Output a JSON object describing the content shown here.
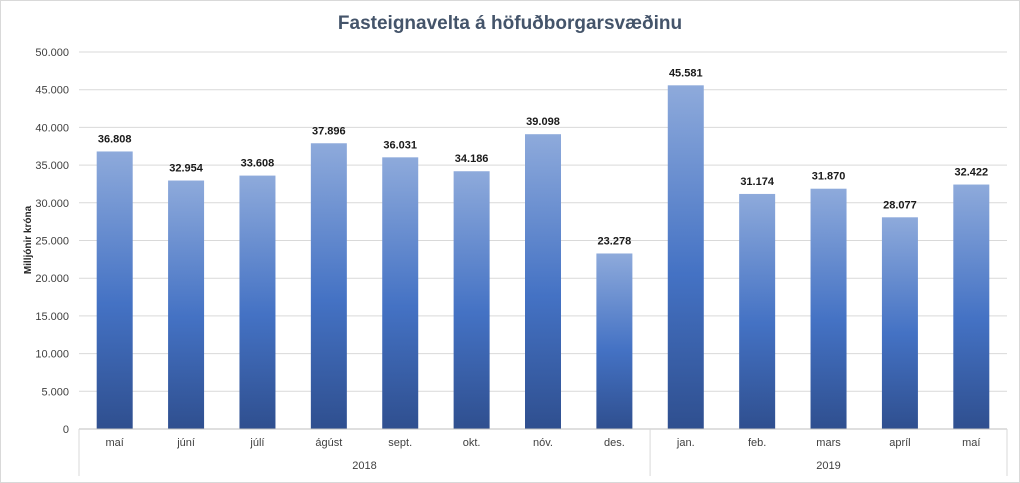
{
  "chart_data": {
    "type": "bar",
    "title": "Fasteignavelta á höfuðborgarsvæðinu",
    "ylabel": "Milljónir króna",
    "xlabel": "",
    "ylim": [
      0,
      50000
    ],
    "yticks": [
      0,
      5000,
      10000,
      15000,
      20000,
      25000,
      30000,
      35000,
      40000,
      45000,
      50000
    ],
    "ytick_labels": [
      "0",
      "5.000",
      "10.000",
      "15.000",
      "20.000",
      "25.000",
      "30.000",
      "35.000",
      "40.000",
      "45.000",
      "50.000"
    ],
    "grid": true,
    "legend": "none",
    "categories": [
      "maí",
      "júní",
      "júlí",
      "ágúst",
      "sept.",
      "okt.",
      "nóv.",
      "des.",
      "jan.",
      "feb.",
      "mars",
      "apríl",
      "maí"
    ],
    "values": [
      36808,
      32954,
      33608,
      37896,
      36031,
      34186,
      39098,
      23278,
      45581,
      31174,
      31870,
      28077,
      32422
    ],
    "data_labels": [
      "36.808",
      "32.954",
      "33.608",
      "37.896",
      "36.031",
      "34.186",
      "39.098",
      "23.278",
      "45.581",
      "31.174",
      "31.870",
      "28.077",
      "32.422"
    ],
    "groups": [
      {
        "label": "2018",
        "categories": 8
      },
      {
        "label": "2019",
        "categories": 5
      }
    ],
    "colors": {
      "bar_top": "#8eaadb",
      "bar_mid": "#4472c4",
      "bar_bottom": "#2f4f8f",
      "title": "#44546a",
      "gridline": "#d9d9d9"
    }
  }
}
